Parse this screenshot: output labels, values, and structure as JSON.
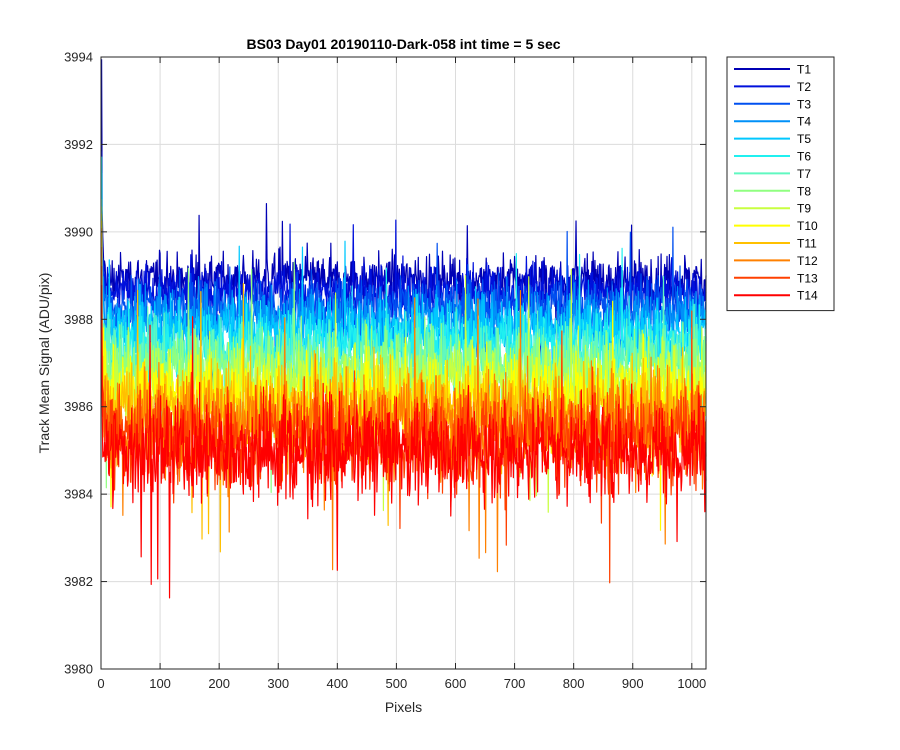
{
  "chart_data": {
    "type": "line",
    "title": "BS03 Day01 20190110-Dark-058 int time = 5 sec",
    "xlabel": "Pixels",
    "ylabel": "Track Mean Signal (ADU/pix)",
    "xlim": [
      0,
      1024
    ],
    "ylim": [
      3980,
      3994
    ],
    "xticks": [
      "0",
      "100",
      "200",
      "300",
      "400",
      "500",
      "600",
      "700",
      "800",
      "900",
      "1000"
    ],
    "yticks": [
      "3980",
      "3982",
      "3984",
      "3986",
      "3988",
      "3990",
      "3992",
      "3994"
    ],
    "grid": true,
    "legend_position": "outside-top-right",
    "n_points": 1024,
    "series": [
      {
        "name": "T1",
        "color": "#0000b4",
        "mean": 3988.9,
        "spread": 0.55,
        "edge_start": 3993.2
      },
      {
        "name": "T2",
        "color": "#0010dc",
        "mean": 3988.6,
        "spread": 0.6,
        "edge_start": 3991.0
      },
      {
        "name": "T3",
        "color": "#0050f0",
        "mean": 3988.3,
        "spread": 0.65,
        "edge_start": 3990.6
      },
      {
        "name": "T4",
        "color": "#0090f8",
        "mean": 3988.0,
        "spread": 0.7,
        "edge_start": 3990.2
      },
      {
        "name": "T5",
        "color": "#00c8ff",
        "mean": 3987.7,
        "spread": 0.75,
        "edge_start": 3990.4
      },
      {
        "name": "T6",
        "color": "#20f0f0",
        "mean": 3987.4,
        "spread": 0.8,
        "edge_start": 3990.6
      },
      {
        "name": "T7",
        "color": "#60f8c0",
        "mean": 3987.1,
        "spread": 0.85,
        "edge_start": 3989.8
      },
      {
        "name": "T8",
        "color": "#90ff80",
        "mean": 3986.8,
        "spread": 0.9,
        "edge_start": 3989.6
      },
      {
        "name": "T9",
        "color": "#c8ff40",
        "mean": 3986.5,
        "spread": 0.95,
        "edge_start": 3989.4
      },
      {
        "name": "T10",
        "color": "#ffff00",
        "mean": 3986.2,
        "spread": 1.0,
        "edge_start": 3989.2
      },
      {
        "name": "T11",
        "color": "#ffc000",
        "mean": 3985.9,
        "spread": 1.05,
        "edge_start": 3989.0
      },
      {
        "name": "T12",
        "color": "#ff8000",
        "mean": 3985.6,
        "spread": 1.1,
        "edge_start": 3988.6
      },
      {
        "name": "T13",
        "color": "#ff4000",
        "mean": 3985.3,
        "spread": 1.1,
        "edge_start": 3988.2
      },
      {
        "name": "T14",
        "color": "#ff0000",
        "mean": 3985.0,
        "spread": 1.1,
        "edge_start": 3987.8
      }
    ]
  }
}
